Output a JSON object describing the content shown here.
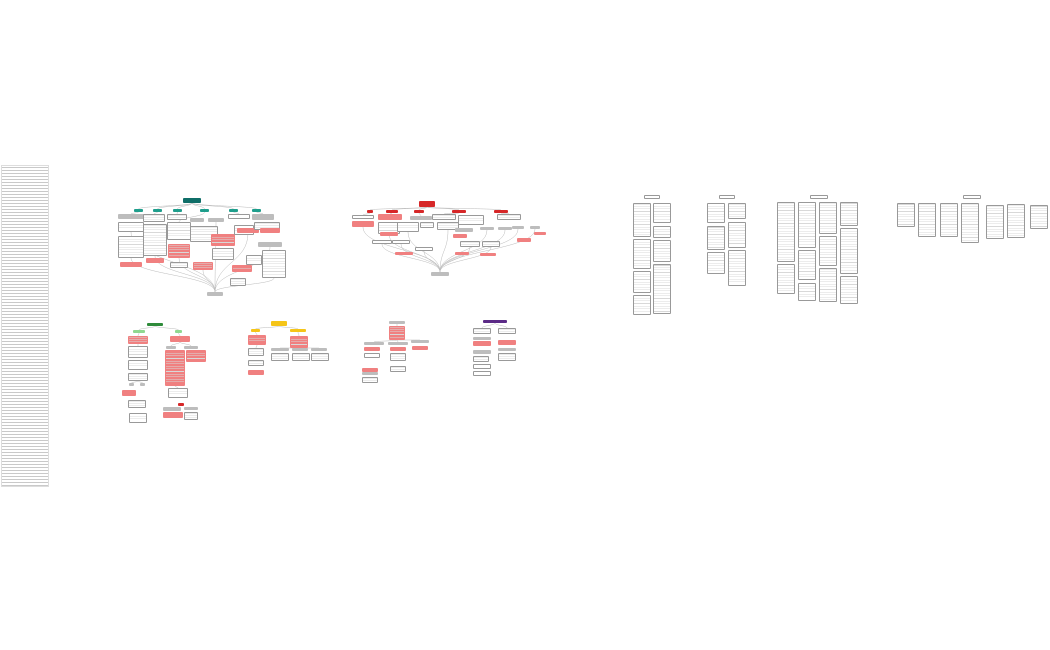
{
  "colors": {
    "teal": "#0f6e68",
    "teal_light": "#1f9e8c",
    "red": "#d62728",
    "red_light": "#f08080",
    "green": "#2e8b3a",
    "green_light": "#90d890",
    "yellow": "#f5c518",
    "gray": "#bdbdbd",
    "purple": "#5b2a86",
    "white": "#ffffff",
    "edge": "#bbbbbb"
  }
}
